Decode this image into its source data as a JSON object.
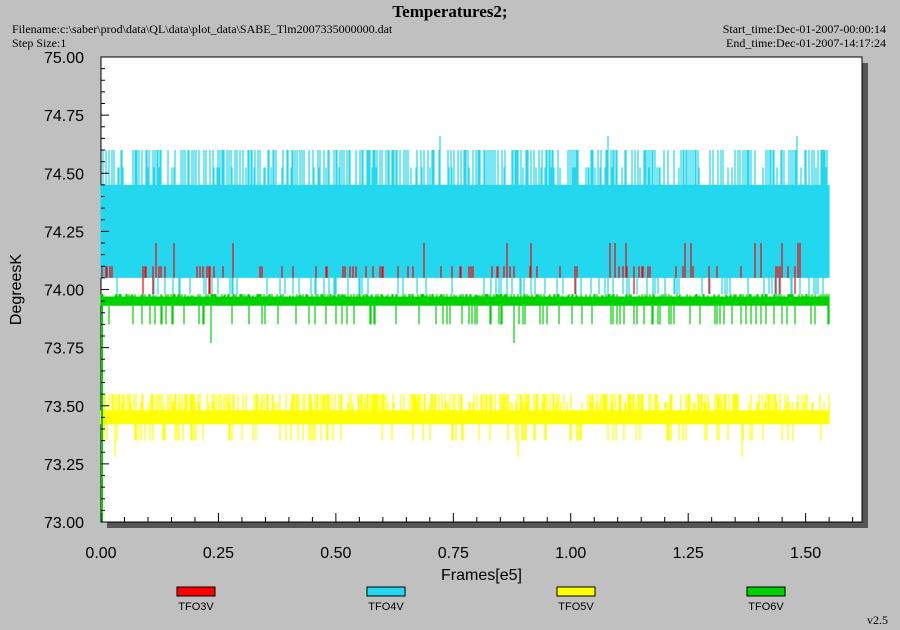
{
  "header": {
    "title": "Temperatures2;",
    "filename": "Filename:c:\\saber\\prod\\data\\QL\\data\\plot_data\\SABE_Tlm2007335000000.dat",
    "step_size": "Step Size:1",
    "start_time": "Start_time:Dec-01-2007-00:00:14",
    "end_time": "End_time:Dec-01-2007-14:17:24"
  },
  "version": "v2.5",
  "colors": {
    "background": "#c0c0c0",
    "plot_area": "#ffffff",
    "TFO3V": "#ff0000",
    "TFO4V": "#22d7ee",
    "TFO5V": "#ffff00",
    "TFO6V": "#00d100"
  },
  "chart_data": {
    "type": "line",
    "title": "Temperatures2;",
    "xlabel": "Frames[e5]",
    "ylabel": "DegreesK",
    "xlim": [
      0.0,
      1.62
    ],
    "ylim": [
      73.0,
      75.0
    ],
    "grid": false,
    "legend_position": "bottom",
    "x_ticks": [
      "0.00",
      "0.25",
      "0.50",
      "0.75",
      "1.00",
      "1.25",
      "1.50"
    ],
    "x_tick_values": [
      0.0,
      0.25,
      0.5,
      0.75,
      1.0,
      1.25,
      1.5
    ],
    "y_ticks": [
      "73.00",
      "73.25",
      "73.50",
      "73.75",
      "74.00",
      "74.25",
      "74.50",
      "74.75",
      "75.00"
    ],
    "y_tick_values": [
      73.0,
      73.25,
      73.5,
      73.75,
      74.0,
      74.25,
      74.5,
      74.75,
      75.0
    ],
    "x_range": [
      0.0,
      1.55
    ],
    "series": [
      {
        "name": "TFO3V",
        "color": "#ff0000",
        "base_low": 74.05,
        "base_high": 74.1,
        "spikes_low": 73.98,
        "spikes_high": 74.2
      },
      {
        "name": "TFO4V",
        "color": "#22d7ee",
        "base_low": 74.05,
        "base_high": 74.45,
        "spikes_low": 73.98,
        "spikes_high": 74.6,
        "max": 74.66
      },
      {
        "name": "TFO5V",
        "color": "#ffff00",
        "base_low": 73.42,
        "base_high": 73.48,
        "spikes_low": 73.35,
        "spikes_high": 73.55,
        "min": 73.28
      },
      {
        "name": "TFO6V",
        "color": "#00d100",
        "base_low": 73.93,
        "base_high": 73.97,
        "spikes_low": 73.85,
        "spikes_high": 73.98,
        "min": 73.77
      }
    ]
  },
  "legend": [
    {
      "label": "TFO3V",
      "color": "#ff0000"
    },
    {
      "label": "TFO4V",
      "color": "#22d7ee"
    },
    {
      "label": "TFO5V",
      "color": "#ffff00"
    },
    {
      "label": "TFO6V",
      "color": "#00d100"
    }
  ]
}
